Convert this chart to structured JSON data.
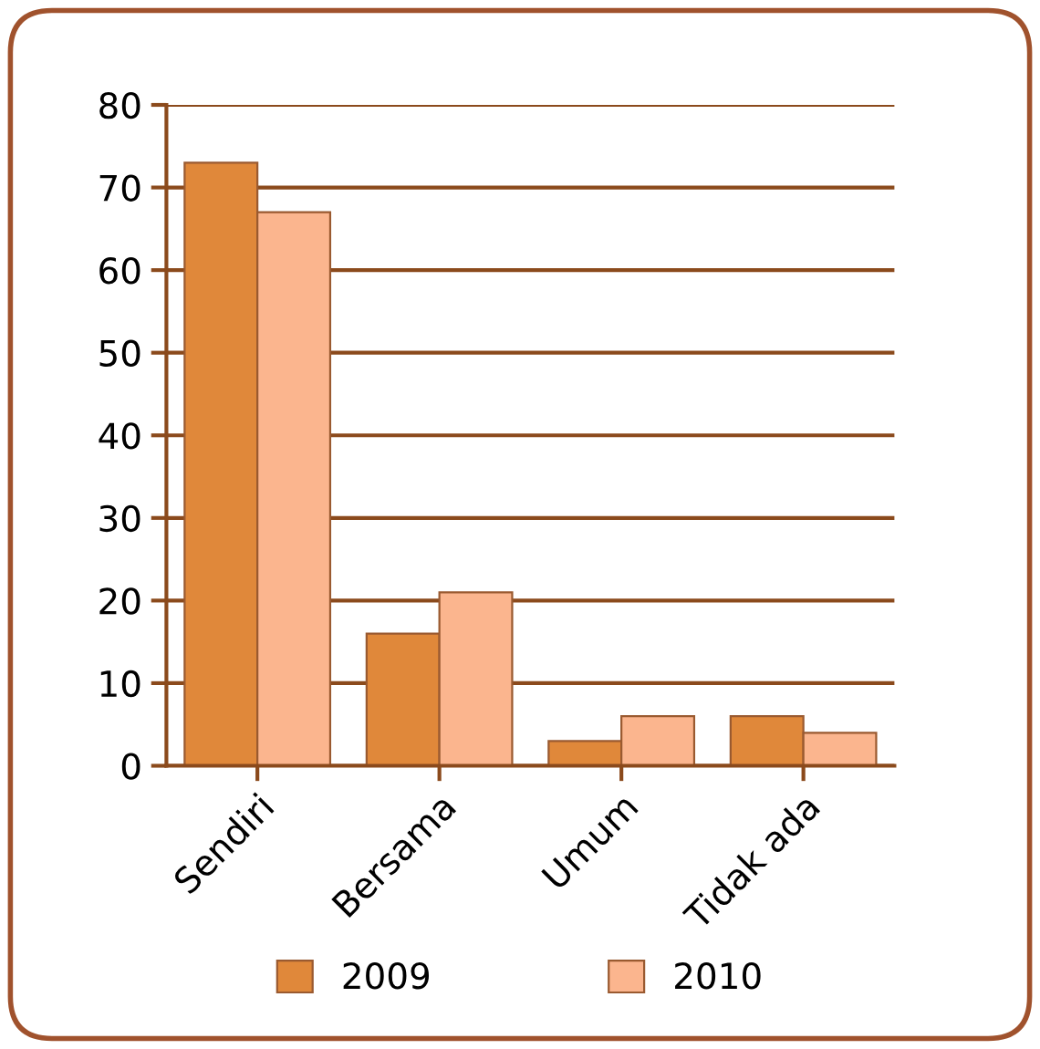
{
  "chart_data": {
    "type": "bar",
    "categories": [
      "Sendiri",
      "Bersama",
      "Umum",
      "Tidak ada"
    ],
    "series": [
      {
        "name": "2009",
        "color": "#e0883a",
        "values": [
          73,
          16,
          3,
          6
        ]
      },
      {
        "name": "2010",
        "color": "#fbb58e",
        "values": [
          67,
          21,
          6,
          4
        ]
      }
    ],
    "ylim": [
      0,
      80
    ],
    "yticks": [
      0,
      10,
      20,
      30,
      40,
      50,
      60,
      70,
      80
    ],
    "grid": "y",
    "legend": "bottom"
  }
}
